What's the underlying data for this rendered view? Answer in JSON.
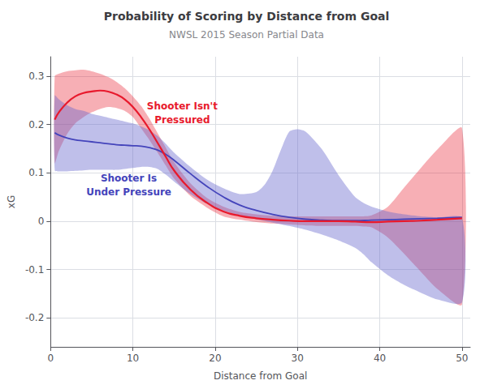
{
  "chart_data": {
    "type": "line",
    "title": "Probability of Scoring by Distance from Goal",
    "subtitle": "NWSL 2015 Season Partial Data",
    "xlabel": "Distance from Goal",
    "ylabel": "xG",
    "xlim": [
      0,
      51
    ],
    "ylim": [
      -0.26,
      0.34
    ],
    "xticks": [
      0,
      10,
      20,
      30,
      40,
      50
    ],
    "yticks": [
      -0.2,
      -0.1,
      0,
      0.1,
      0.2,
      0.3
    ],
    "grid": true,
    "bands": [
      {
        "color": "#E8192C",
        "upper_x": [
          0.5,
          1,
          2,
          3,
          4,
          5,
          6,
          7,
          8,
          9,
          10,
          11,
          12,
          13,
          14,
          15,
          17,
          19,
          21,
          23,
          25,
          27,
          29,
          31,
          33,
          35,
          37,
          38,
          39,
          41,
          43,
          45,
          47,
          50
        ],
        "upper_y": [
          0.3,
          0.305,
          0.31,
          0.312,
          0.313,
          0.31,
          0.305,
          0.298,
          0.288,
          0.275,
          0.258,
          0.238,
          0.212,
          0.182,
          0.152,
          0.122,
          0.078,
          0.048,
          0.03,
          0.019,
          0.014,
          0.011,
          0.01,
          0.01,
          0.01,
          0.01,
          0.01,
          0.01,
          0.012,
          0.03,
          0.07,
          0.11,
          0.148,
          0.192
        ],
        "lower_x": [
          0.5,
          1,
          2,
          3,
          4,
          5,
          6,
          7,
          8,
          9,
          10,
          11,
          12,
          13,
          14,
          15,
          17,
          19,
          21,
          23,
          25,
          27,
          29,
          31,
          33,
          35,
          37,
          38,
          39,
          41,
          43,
          45,
          47,
          50
        ],
        "lower_y": [
          0.12,
          0.145,
          0.18,
          0.202,
          0.215,
          0.225,
          0.232,
          0.236,
          0.234,
          0.228,
          0.215,
          0.192,
          0.168,
          0.142,
          0.115,
          0.088,
          0.052,
          0.028,
          0.01,
          0.003,
          -0.002,
          -0.005,
          -0.007,
          -0.009,
          -0.01,
          -0.01,
          -0.01,
          -0.011,
          -0.013,
          -0.034,
          -0.068,
          -0.105,
          -0.14,
          -0.172
        ]
      },
      {
        "color": "#6666CC",
        "upper_x": [
          0.5,
          1,
          2,
          3,
          4,
          5,
          6,
          7,
          8,
          9,
          10,
          11,
          12,
          13,
          14,
          15,
          17,
          19,
          21,
          23,
          25,
          26,
          27,
          28,
          29,
          30,
          31,
          33,
          35,
          37,
          38,
          39,
          41,
          43,
          45,
          47,
          50
        ],
        "upper_y": [
          0.26,
          0.252,
          0.24,
          0.232,
          0.228,
          0.222,
          0.218,
          0.214,
          0.21,
          0.206,
          0.202,
          0.196,
          0.188,
          0.176,
          0.16,
          0.142,
          0.112,
          0.086,
          0.068,
          0.056,
          0.06,
          0.075,
          0.105,
          0.148,
          0.185,
          0.19,
          0.185,
          0.148,
          0.095,
          0.05,
          0.038,
          0.03,
          0.02,
          0.014,
          0.01,
          0.008,
          0.006
        ],
        "lower_x": [
          0.5,
          1,
          2,
          3,
          4,
          5,
          6,
          7,
          8,
          9,
          10,
          11,
          12,
          13,
          14,
          15,
          17,
          19,
          21,
          23,
          25,
          27,
          29,
          31,
          33,
          35,
          37,
          38,
          39,
          41,
          43,
          45,
          47,
          50
        ],
        "lower_y": [
          0.105,
          0.103,
          0.103,
          0.104,
          0.105,
          0.106,
          0.106,
          0.106,
          0.106,
          0.108,
          0.11,
          0.112,
          0.112,
          0.108,
          0.096,
          0.082,
          0.056,
          0.036,
          0.022,
          0.012,
          0.004,
          -0.003,
          -0.01,
          -0.018,
          -0.028,
          -0.04,
          -0.055,
          -0.068,
          -0.085,
          -0.112,
          -0.132,
          -0.148,
          -0.162,
          -0.168
        ]
      }
    ],
    "series": [
      {
        "color": "#E8192C",
        "x": [
          0.5,
          1,
          2,
          3,
          4,
          5,
          6,
          7,
          8,
          9,
          10,
          11,
          12,
          13,
          14,
          15,
          17,
          19,
          21,
          23,
          25,
          27,
          29,
          31,
          33,
          35,
          37,
          39,
          41,
          43,
          45,
          47,
          50
        ],
        "values": [
          0.21,
          0.225,
          0.245,
          0.258,
          0.265,
          0.268,
          0.27,
          0.268,
          0.262,
          0.252,
          0.236,
          0.215,
          0.19,
          0.162,
          0.133,
          0.105,
          0.065,
          0.038,
          0.02,
          0.011,
          0.006,
          0.003,
          0.001,
          0.0,
          0.0,
          0.0,
          -0.001,
          -0.002,
          -0.001,
          0.0,
          0.001,
          0.003,
          0.006
        ]
      },
      {
        "color": "#4444BB",
        "x": [
          0.5,
          1,
          2,
          3,
          4,
          5,
          6,
          7,
          8,
          9,
          10,
          11,
          12,
          13,
          14,
          15,
          17,
          19,
          21,
          23,
          25,
          27,
          29,
          31,
          33,
          35,
          37,
          39,
          41,
          43,
          45,
          47,
          50
        ],
        "values": [
          0.183,
          0.178,
          0.172,
          0.168,
          0.166,
          0.164,
          0.162,
          0.16,
          0.158,
          0.157,
          0.156,
          0.155,
          0.152,
          0.147,
          0.138,
          0.126,
          0.098,
          0.072,
          0.05,
          0.033,
          0.022,
          0.014,
          0.008,
          0.004,
          0.002,
          0.001,
          0.001,
          0.002,
          0.003,
          0.004,
          0.005,
          0.006,
          0.008
        ]
      }
    ],
    "annotations": [
      {
        "text": "Shooter Isn't",
        "x": 16.0,
        "y": 0.238,
        "color": "#E8192C"
      },
      {
        "text": "Pressured",
        "x": 16.0,
        "y": 0.21,
        "color": "#E8192C"
      },
      {
        "text": "Shooter Is",
        "x": 9.5,
        "y": 0.088,
        "color": "#4444BB"
      },
      {
        "text": "Under Pressure",
        "x": 9.5,
        "y": 0.06,
        "color": "#4444BB"
      }
    ]
  }
}
